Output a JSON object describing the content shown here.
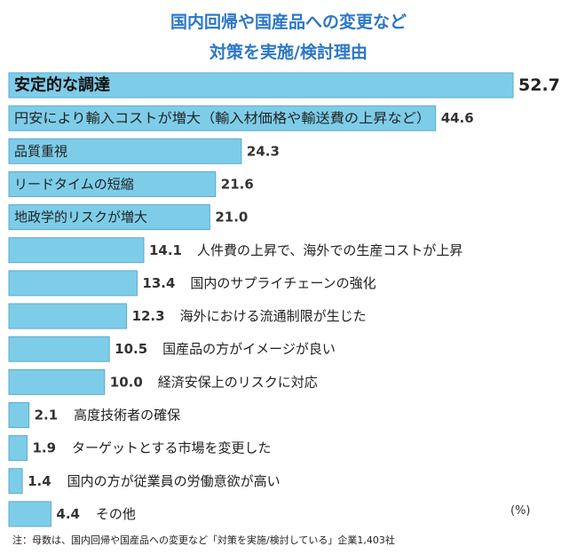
{
  "title_line1": "国内回帰や国産品への変更など",
  "title_line2": "対策を実施/検討理由",
  "unit": "(%)",
  "note": "注：母数は、国内回帰や国産品への変更など「対策を実施/検討している」企業1,403社",
  "colors": {
    "bar": "#7dcde9",
    "bar_stroke": "#5aa9cf",
    "title": "#2b77c7"
  },
  "chart_data": {
    "type": "bar",
    "orientation": "horizontal",
    "categories": [
      "安定的な調達",
      "円安により輸入コストが増大（輸入材価格や輸送費の上昇など）",
      "品質重視",
      "リードタイムの短縮",
      "地政学的リスクが増大",
      "人件費の上昇で、海外での生産コストが上昇",
      "国内のサプライチェーンの強化",
      "海外における流通制限が生じた",
      "国産品の方がイメージが良い",
      "経済安保上のリスクに対応",
      "高度技術者の確保",
      "ターゲットとする市場を変更した",
      "国内の方が従業員の労働意欲が高い",
      "その他"
    ],
    "values": [
      52.7,
      44.6,
      24.3,
      21.6,
      21.0,
      14.1,
      13.4,
      12.3,
      10.5,
      10.0,
      2.1,
      1.9,
      1.4,
      4.4
    ],
    "value_labels": [
      "52.7",
      "44.6",
      "24.3",
      "21.6",
      "21.0",
      "14.1",
      "13.4",
      "12.3",
      "10.5",
      "10.0",
      "2.1",
      "1.9",
      "1.4",
      "4.4"
    ],
    "grid": false,
    "legend": "none"
  }
}
